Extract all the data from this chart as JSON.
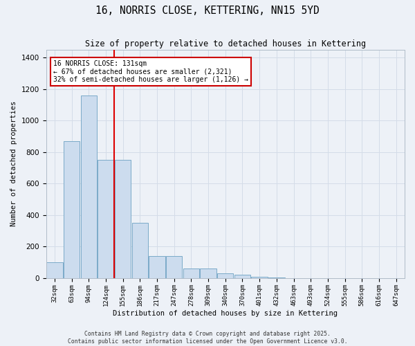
{
  "title": "16, NORRIS CLOSE, KETTERING, NN15 5YD",
  "subtitle": "Size of property relative to detached houses in Kettering",
  "xlabel": "Distribution of detached houses by size in Kettering",
  "ylabel": "Number of detached properties",
  "categories": [
    "32sqm",
    "63sqm",
    "94sqm",
    "124sqm",
    "155sqm",
    "186sqm",
    "217sqm",
    "247sqm",
    "278sqm",
    "309sqm",
    "340sqm",
    "370sqm",
    "401sqm",
    "432sqm",
    "463sqm",
    "493sqm",
    "524sqm",
    "555sqm",
    "586sqm",
    "616sqm",
    "647sqm"
  ],
  "values": [
    100,
    870,
    1160,
    750,
    750,
    350,
    140,
    140,
    60,
    60,
    30,
    20,
    10,
    5,
    0,
    0,
    0,
    0,
    0,
    0,
    0
  ],
  "bar_color": "#ccdcee",
  "bar_edge_color": "#7aaac8",
  "red_line_x": 3.48,
  "annotation_text": "16 NORRIS CLOSE: 131sqm\n← 67% of detached houses are smaller (2,321)\n32% of semi-detached houses are larger (1,126) →",
  "annotation_box_facecolor": "#ffffff",
  "annotation_box_edgecolor": "#cc0000",
  "red_line_color": "#dd0000",
  "ylim": [
    0,
    1450
  ],
  "yticks": [
    0,
    200,
    400,
    600,
    800,
    1000,
    1200,
    1400
  ],
  "grid_color": "#d4dce8",
  "background_color": "#edf1f7",
  "footer_text": "Contains HM Land Registry data © Crown copyright and database right 2025.\nContains public sector information licensed under the Open Government Licence v3.0."
}
